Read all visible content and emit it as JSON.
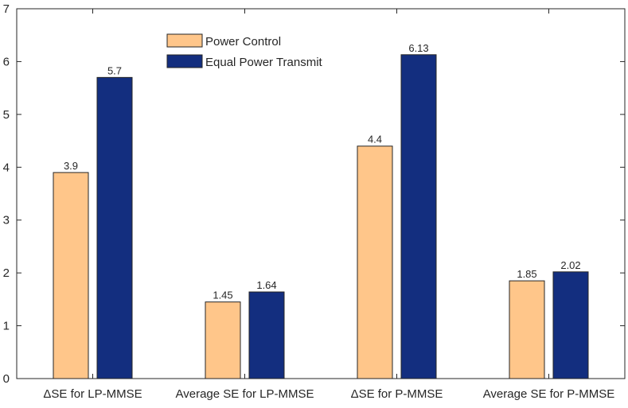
{
  "chart_data": {
    "type": "bar",
    "title": "",
    "xlabel": "",
    "ylabel": "",
    "categories": [
      "ΔSE for LP-MMSE",
      "Average SE for LP-MMSE",
      "ΔSE for P-MMSE",
      "Average SE for P-MMSE"
    ],
    "series": [
      {
        "name": "Power Control",
        "color": "#FFC68A",
        "values": [
          3.9,
          1.45,
          4.4,
          1.85
        ],
        "labels": [
          "3.9",
          "1.45",
          "4.4",
          "1.85"
        ]
      },
      {
        "name": "Equal Power Transmit",
        "color": "#132E7F",
        "values": [
          5.7,
          1.64,
          6.13,
          2.02
        ],
        "labels": [
          "5.7",
          "1.64",
          "6.13",
          "2.02"
        ]
      }
    ],
    "ylim": [
      0,
      7
    ],
    "yticks": [
      0,
      1,
      2,
      3,
      4,
      5,
      6,
      7
    ],
    "legend_position": "top-center",
    "grid": false
  }
}
